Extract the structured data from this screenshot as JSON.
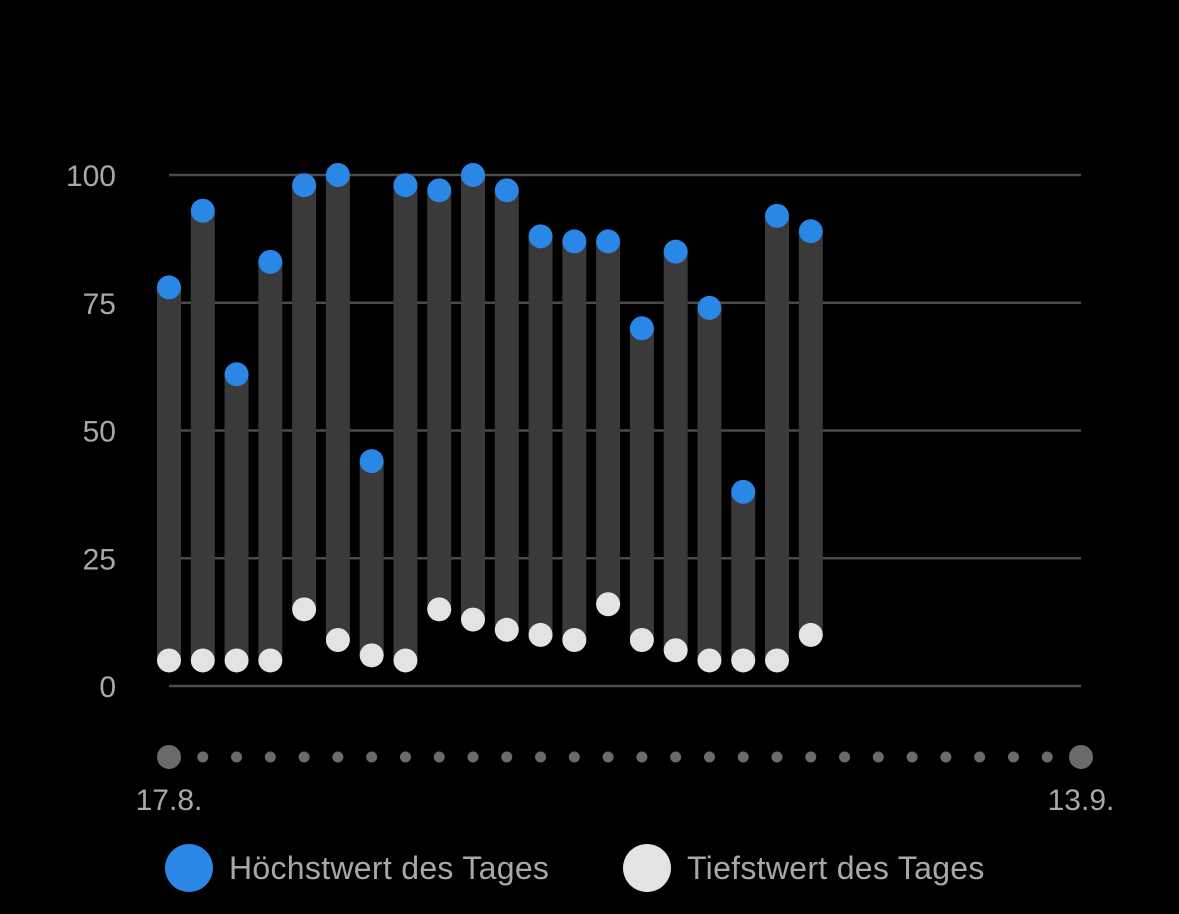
{
  "chart_data": {
    "type": "range-bar",
    "y_ticks": [
      0,
      25,
      50,
      75,
      100
    ],
    "ylim": [
      0,
      100
    ],
    "x_start_label": "17.8.",
    "x_end_label": "13.9.",
    "x_dates": [
      "17.8.",
      "18.8.",
      "19.8.",
      "20.8.",
      "21.8.",
      "22.8.",
      "23.8.",
      "24.8.",
      "25.8.",
      "26.8.",
      "27.8.",
      "28.8.",
      "29.8.",
      "30.8.",
      "31.8.",
      "1.9.",
      "2.9.",
      "3.9.",
      "4.9.",
      "5.9.",
      "6.9.",
      "7.9.",
      "8.9.",
      "9.9.",
      "10.9.",
      "11.9.",
      "12.9.",
      "13.9."
    ],
    "grid": true,
    "legend_position": "bottom",
    "series": [
      {
        "name": "Höchstwert des Tages",
        "color": "#2b87e6",
        "values": [
          78,
          93,
          61,
          83,
          98,
          100,
          44,
          98,
          97,
          100,
          97,
          88,
          87,
          87,
          70,
          85,
          74,
          38,
          92,
          89
        ]
      },
      {
        "name": "Tiefstwert des Tages",
        "color": "#e3e3e3",
        "values": [
          5,
          5,
          5,
          5,
          15,
          9,
          6,
          5,
          15,
          13,
          11,
          10,
          9,
          16,
          9,
          7,
          5,
          5,
          5,
          10
        ]
      }
    ],
    "bar_color": "#3a3a3a",
    "gridline_color": "#4a4a4a",
    "axis_label_color": "#a8a8a8",
    "timeline_dot_color": "#6a6a6a"
  }
}
